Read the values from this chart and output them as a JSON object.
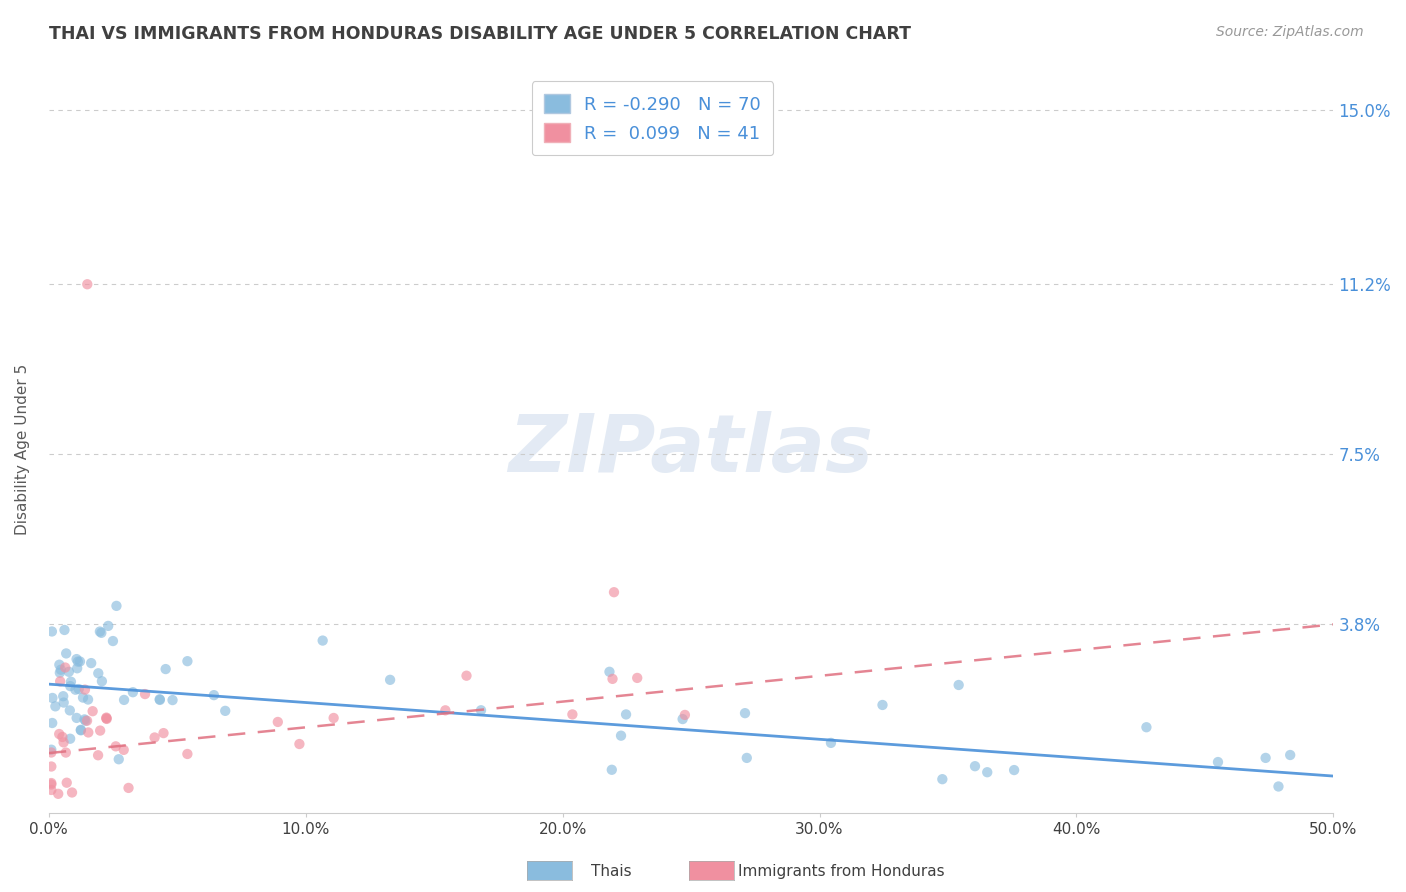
{
  "title": "THAI VS IMMIGRANTS FROM HONDURAS DISABILITY AGE UNDER 5 CORRELATION CHART",
  "source": "Source: ZipAtlas.com",
  "ylabel": "Disability Age Under 5",
  "x_min": 0.0,
  "x_max": 0.5,
  "y_min": -0.003,
  "y_max": 0.155,
  "y_ticks": [
    0.038,
    0.075,
    0.112,
    0.15
  ],
  "y_tick_labels": [
    "3.8%",
    "7.5%",
    "11.2%",
    "15.0%"
  ],
  "x_ticks": [
    0.0,
    0.1,
    0.2,
    0.3,
    0.4,
    0.5
  ],
  "x_tick_labels": [
    "0.0%",
    "10.0%",
    "20.0%",
    "30.0%",
    "40.0%",
    "50.0%"
  ],
  "series1_color": "#8abcde",
  "series2_color": "#f090a0",
  "trendline1_color": "#4a90d9",
  "trendline2_color": "#e07080",
  "watermark": "ZIPatlas",
  "background_color": "#ffffff",
  "title_color": "#404040",
  "axis_label_color": "#5a5a5a",
  "tick_label_color_right": "#4a90d9",
  "tick_label_color_bottom": "#404040",
  "legend_label1": "R = -0.290   N = 70",
  "legend_label2": "R =  0.099   N = 41",
  "legend_color1": "#8abcde",
  "legend_color2": "#f090a0",
  "bottom_label1": "Thais",
  "bottom_label2": "Immigrants from Honduras",
  "trendline1_start_y": 0.025,
  "trendline1_end_y": 0.005,
  "trendline2_start_y": 0.01,
  "trendline2_end_y": 0.038
}
